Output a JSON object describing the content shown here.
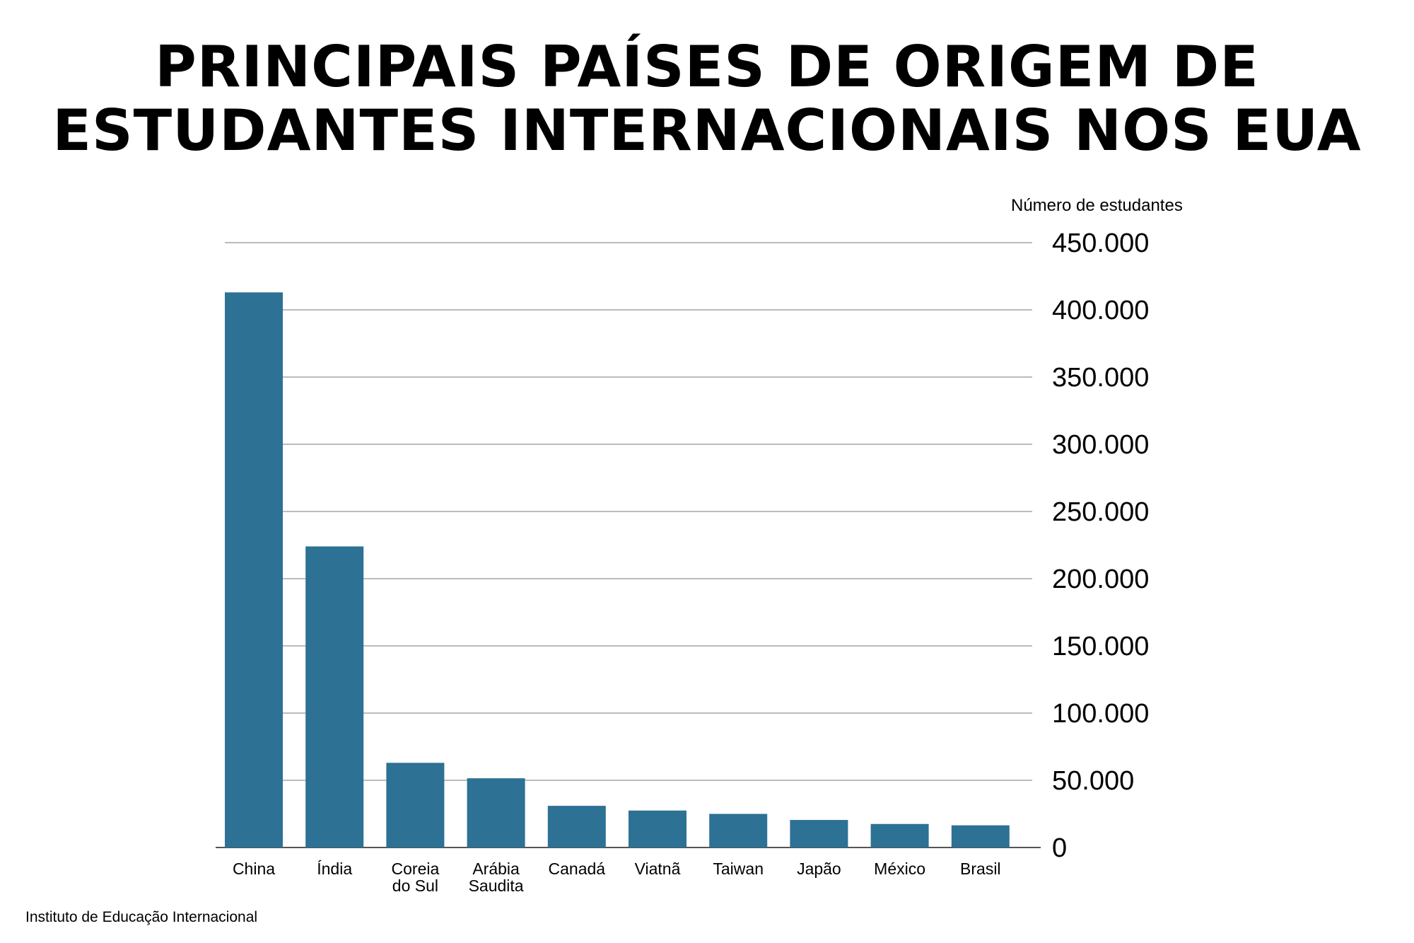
{
  "chart_data": {
    "type": "bar",
    "title": [
      "PRINCIPAIS PAÍSES DE ORIGEM DE",
      "ESTUDANTES INTERNACIONAIS NOS EUA"
    ],
    "ylabel": "Número de estudantes",
    "xlabel": "",
    "categories": [
      [
        "China"
      ],
      [
        "Índia"
      ],
      [
        "Coreia",
        "do Sul"
      ],
      [
        "Arábia",
        "Saudita"
      ],
      [
        "Canadá"
      ],
      [
        "Viatnã"
      ],
      [
        "Taiwan"
      ],
      [
        "Japão"
      ],
      [
        "México"
      ],
      [
        "Brasil"
      ]
    ],
    "values": [
      413000,
      224000,
      63000,
      51500,
      31000,
      27500,
      25000,
      20500,
      17500,
      16500
    ],
    "ylim": [
      0,
      450000
    ],
    "yticks": [
      0,
      50000,
      100000,
      150000,
      200000,
      250000,
      300000,
      350000,
      400000,
      450000
    ],
    "ytick_labels": [
      "0",
      "50.000",
      "100.000",
      "150.000",
      "200.000",
      "250.000",
      "300.000",
      "350.000",
      "400.000",
      "450.000"
    ],
    "y_axis_position": "right",
    "grid": true,
    "legend": "none",
    "source": "Instituto de Educação Internacional",
    "colors": {
      "bar": "#2d7194",
      "grid": "#a6a6a6",
      "text": "#000000"
    }
  }
}
